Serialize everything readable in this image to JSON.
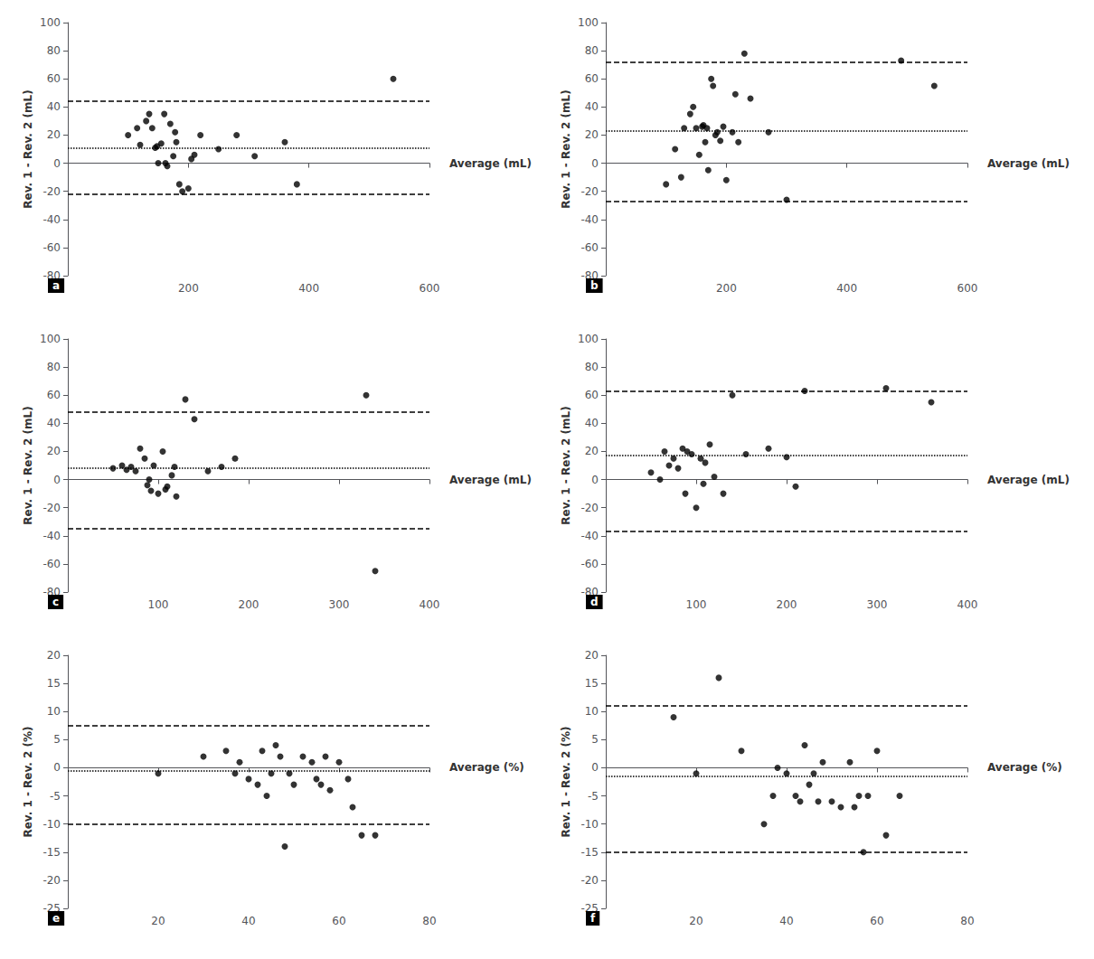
{
  "chart_data": [
    {
      "type": "scatter",
      "title": "a",
      "xlabel": "Average (mL)",
      "ylabel": "Rev. 1 - Rev. 2 (mL)",
      "xlim": [
        0,
        600
      ],
      "ylim": [
        -80,
        100
      ],
      "xticks": [
        200,
        400,
        600
      ],
      "yticks": [
        -80,
        -60,
        -40,
        -20,
        0,
        20,
        40,
        60,
        80,
        100
      ],
      "mean_diff": 11,
      "upper_loa": 44,
      "lower_loa": -22,
      "x": [
        100,
        115,
        120,
        130,
        135,
        140,
        145,
        148,
        150,
        155,
        160,
        162,
        165,
        170,
        175,
        178,
        180,
        185,
        190,
        200,
        205,
        210,
        220,
        250,
        280,
        310,
        360,
        380,
        540
      ],
      "values": [
        20,
        25,
        13,
        30,
        35,
        25,
        11,
        12,
        0,
        14,
        35,
        0,
        -2,
        28,
        5,
        22,
        15,
        -15,
        -20,
        -18,
        3,
        6,
        20,
        10,
        20,
        5,
        15,
        -15,
        60
      ],
      "color": "#000000",
      "grid": false
    },
    {
      "type": "scatter",
      "title": "b",
      "xlabel": "Average (mL)",
      "ylabel": "Rev. 1 - Rev. 2 (mL)",
      "xlim": [
        0,
        600
      ],
      "ylim": [
        -80,
        100
      ],
      "xticks": [
        200,
        400,
        600
      ],
      "yticks": [
        -80,
        -60,
        -40,
        -20,
        0,
        20,
        40,
        60,
        80,
        100
      ],
      "mean_diff": 23,
      "upper_loa": 72,
      "lower_loa": -27,
      "x": [
        100,
        115,
        125,
        130,
        140,
        145,
        150,
        155,
        160,
        162,
        165,
        168,
        170,
        175,
        178,
        182,
        185,
        190,
        195,
        200,
        210,
        215,
        220,
        230,
        240,
        270,
        300,
        490,
        545
      ],
      "values": [
        -15,
        10,
        -10,
        25,
        35,
        40,
        25,
        6,
        26,
        27,
        15,
        25,
        -5,
        60,
        55,
        20,
        22,
        16,
        26,
        -12,
        22,
        49,
        15,
        78,
        46,
        22,
        -26,
        73,
        55
      ],
      "color": "#000000",
      "grid": false
    },
    {
      "type": "scatter",
      "title": "c",
      "xlabel": "Average (mL)",
      "ylabel": "Rev. 1 - Rev. 2 (mL)",
      "xlim": [
        0,
        400
      ],
      "ylim": [
        -80,
        100
      ],
      "xticks": [
        100,
        200,
        300,
        400
      ],
      "yticks": [
        -80,
        -60,
        -40,
        -20,
        0,
        20,
        40,
        60,
        80,
        100
      ],
      "mean_diff": 8,
      "upper_loa": 48,
      "lower_loa": -35,
      "x": [
        50,
        60,
        65,
        70,
        75,
        80,
        85,
        88,
        90,
        92,
        95,
        100,
        105,
        108,
        110,
        115,
        118,
        120,
        130,
        140,
        155,
        170,
        185,
        330,
        340
      ],
      "values": [
        8,
        10,
        7,
        9,
        6,
        22,
        15,
        -4,
        0,
        -8,
        10,
        -10,
        20,
        -7,
        -5,
        3,
        9,
        -12,
        57,
        43,
        6,
        9,
        15,
        60,
        -65
      ],
      "color": "#000000",
      "grid": false
    },
    {
      "type": "scatter",
      "title": "d",
      "xlabel": "Average (mL)",
      "ylabel": "Rev. 1 - Rev. 2 (mL)",
      "xlim": [
        0,
        400
      ],
      "ylim": [
        -80,
        100
      ],
      "xticks": [
        100,
        200,
        300,
        400
      ],
      "yticks": [
        -80,
        -60,
        -40,
        -20,
        0,
        20,
        40,
        60,
        80,
        100
      ],
      "mean_diff": 17,
      "upper_loa": 63,
      "lower_loa": -37,
      "x": [
        50,
        60,
        65,
        70,
        75,
        80,
        85,
        88,
        90,
        95,
        100,
        105,
        108,
        110,
        115,
        120,
        130,
        140,
        155,
        180,
        200,
        210,
        220,
        310,
        360
      ],
      "values": [
        5,
        0,
        20,
        10,
        15,
        8,
        22,
        -10,
        20,
        18,
        -20,
        15,
        -3,
        12,
        25,
        2,
        -10,
        60,
        18,
        22,
        16,
        -5,
        63,
        65,
        55
      ],
      "color": "#000000",
      "grid": false
    },
    {
      "type": "scatter",
      "title": "e",
      "xlabel": "Average (%)",
      "ylabel": "Rev. 1 - Rev. 2 (%)",
      "xlim": [
        0,
        80
      ],
      "ylim": [
        -25,
        20
      ],
      "xticks": [
        20,
        40,
        60,
        80
      ],
      "yticks": [
        -25,
        -20,
        -15,
        -10,
        -5,
        0,
        5,
        10,
        15,
        20
      ],
      "mean_diff": -0.5,
      "upper_loa": 7.5,
      "lower_loa": -10,
      "x": [
        20,
        30,
        35,
        37,
        38,
        40,
        42,
        43,
        44,
        45,
        46,
        47,
        48,
        49,
        50,
        52,
        54,
        55,
        56,
        57,
        58,
        60,
        62,
        63,
        65,
        68
      ],
      "values": [
        -1,
        2,
        3,
        -1,
        1,
        -2,
        -3,
        3,
        -5,
        -1,
        4,
        2,
        -14,
        -1,
        -3,
        2,
        1,
        -2,
        -3,
        2,
        -4,
        1,
        -2,
        -7,
        -12,
        -12
      ],
      "color": "#000000",
      "grid": false
    },
    {
      "type": "scatter",
      "title": "f",
      "xlabel": "Average (%)",
      "ylabel": "Rev. 1 - Rev. 2 (%)",
      "xlim": [
        0,
        80
      ],
      "ylim": [
        -25,
        20
      ],
      "xticks": [
        20,
        40,
        60,
        80
      ],
      "yticks": [
        -25,
        -20,
        -15,
        -10,
        -5,
        0,
        5,
        10,
        15,
        20
      ],
      "mean_diff": -1.5,
      "upper_loa": 11,
      "lower_loa": -15,
      "x": [
        15,
        20,
        25,
        30,
        35,
        37,
        38,
        40,
        42,
        43,
        44,
        45,
        46,
        47,
        48,
        50,
        52,
        54,
        55,
        56,
        57,
        58,
        60,
        62,
        65
      ],
      "values": [
        9,
        -1,
        16,
        3,
        -10,
        -5,
        0,
        -1,
        -5,
        -6,
        4,
        -3,
        -1,
        -6,
        1,
        -6,
        -7,
        1,
        -7,
        -5,
        -15,
        -5,
        3,
        -12,
        -5
      ],
      "color": "#000000",
      "grid": false
    }
  ]
}
